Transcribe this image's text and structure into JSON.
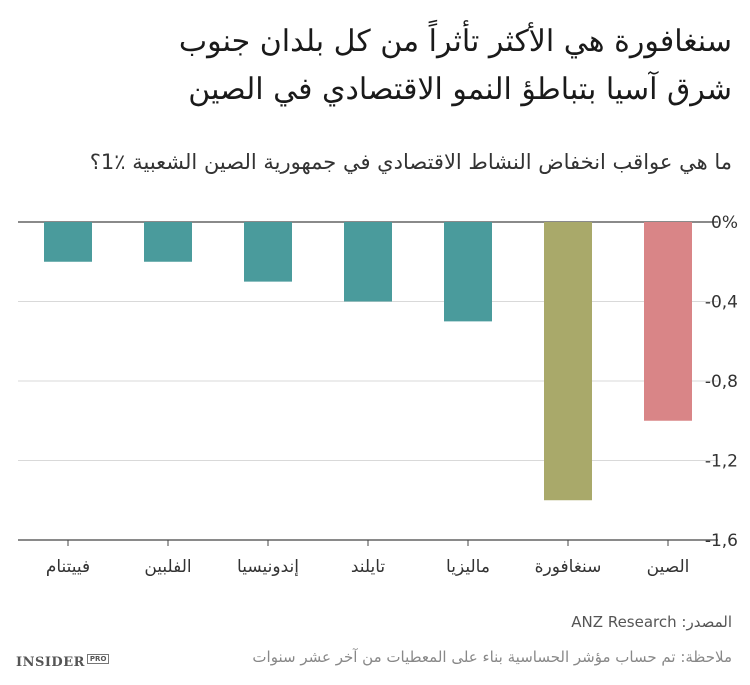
{
  "title": {
    "line1": "سنغافورة هي الأكثر تأثراً من كل بلدان جنوب",
    "line2": "شرق آسيا بتباطؤ النمو الاقتصادي في الصين"
  },
  "subtitle": "ما هي عواقب انخفاض النشاط الاقتصادي في جمهورية الصين الشعبية ٪1؟",
  "colors": {
    "teal": "#4a9b9c",
    "olive": "#a9a96a",
    "rose": "#d98587",
    "grid": "#d9d9d9",
    "axis": "#444444"
  },
  "chart_data": {
    "type": "bar",
    "title": "ما هي عواقب انخفاض النشاط الاقتصادي في جمهورية الصين الشعبية ٪1؟",
    "categories": [
      "فييتنام",
      "الفلبين",
      "إندونيسيا",
      "تايلند",
      "ماليزيا",
      "سنغافورة",
      "الصين"
    ],
    "values": [
      -0.2,
      -0.2,
      -0.3,
      -0.4,
      -0.5,
      -1.4,
      -1.0
    ],
    "bar_colors": [
      "#4a9b9c",
      "#4a9b9c",
      "#4a9b9c",
      "#4a9b9c",
      "#4a9b9c",
      "#a9a96a",
      "#d98587"
    ],
    "ylim": [
      -1.6,
      0
    ],
    "yticks": [
      0,
      -0.4,
      -0.8,
      -1.2,
      -1.6
    ],
    "ytick_labels": [
      "0%",
      "-0,4",
      "-0,8",
      "-1,2",
      "-1,6"
    ],
    "xlabel": "",
    "ylabel": "",
    "grid": true
  },
  "source": "المصدر: ANZ Research",
  "note": "ملاحظة: تم حساب مؤشر الحساسية بناء على المعطيات من آخر عشر سنوات",
  "logo": {
    "text": "INSIDER",
    "badge": "PRO"
  }
}
